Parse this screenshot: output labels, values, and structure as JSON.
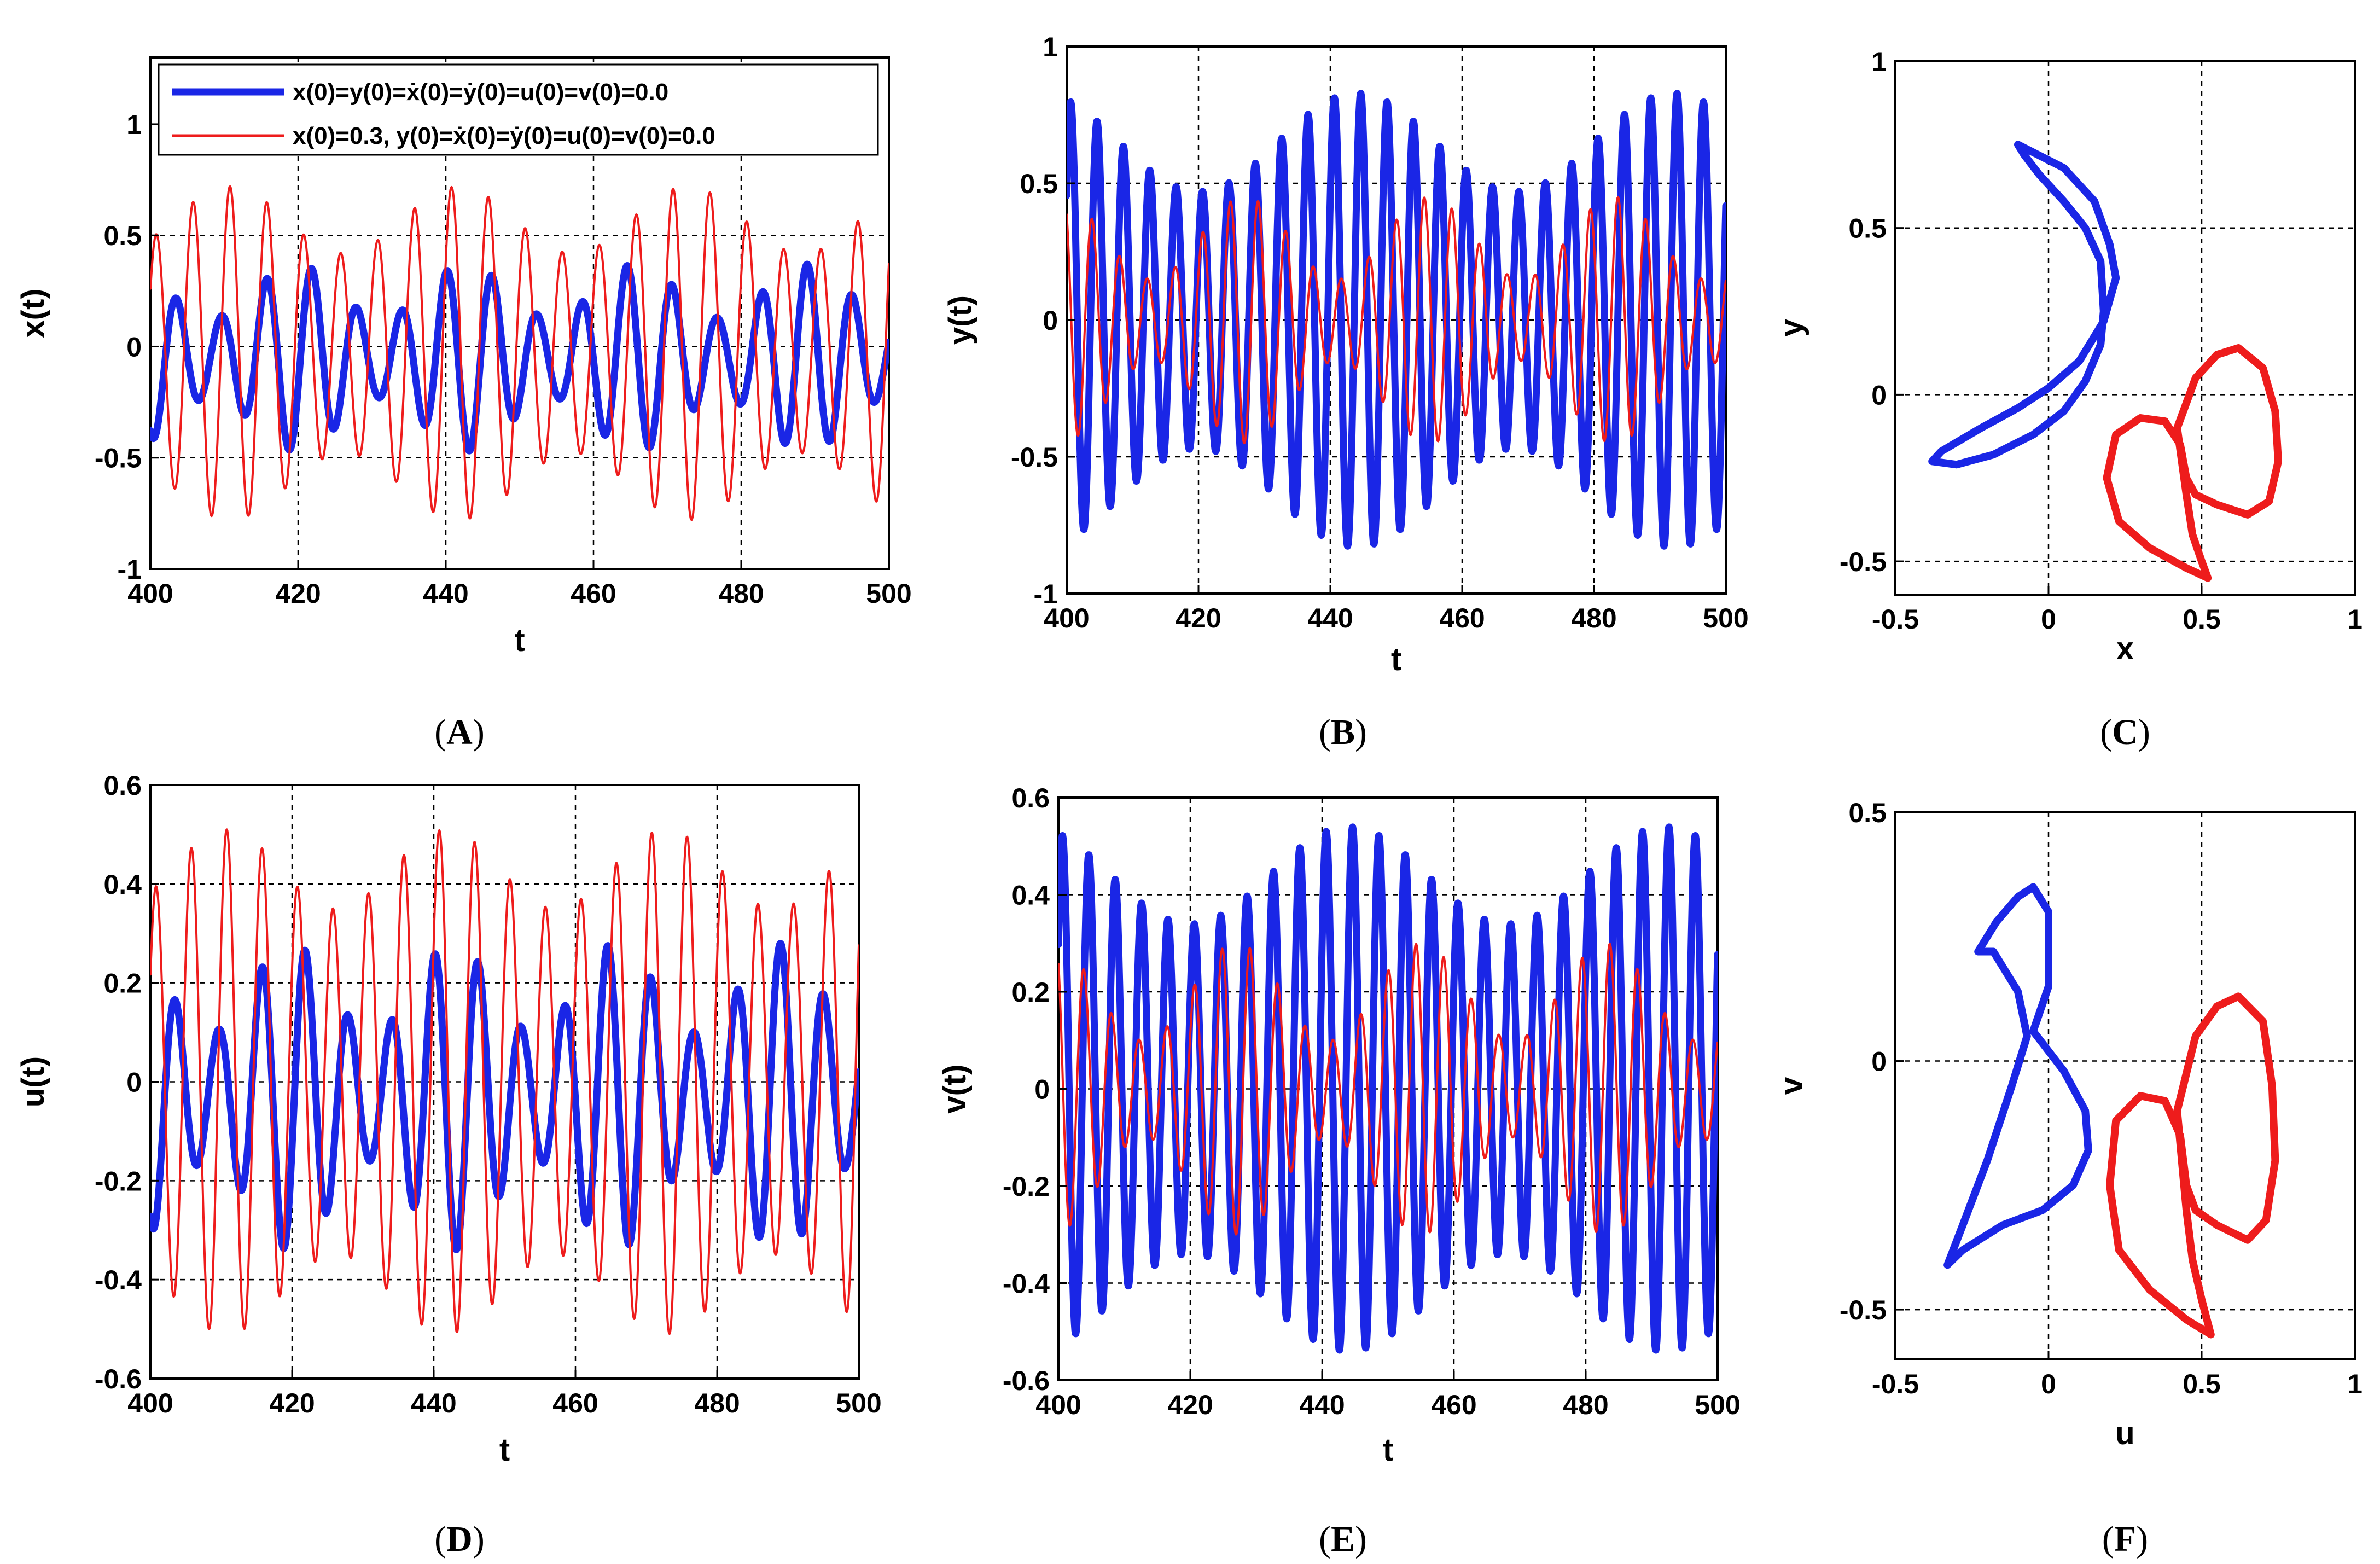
{
  "colors": {
    "series_a": "#1a26e6",
    "series_b": "#ee1c1c"
  },
  "legend": {
    "entries": [
      "x(0)=y(0)=ẋ(0)=ẏ(0)=u(0)=v(0)=0.0",
      "x(0)=0.3, y(0)=ẋ(0)=ẏ(0)=u(0)=v(0)=0.0"
    ]
  },
  "chart_data": [
    {
      "panel": "A",
      "caption": "(A)",
      "type": "line",
      "xlabel": "t",
      "ylabel": "x(t)",
      "xlim": [
        400,
        500
      ],
      "ylim": [
        -1,
        1.3
      ],
      "xticks": [
        400,
        420,
        440,
        460,
        480,
        500
      ],
      "yticks": [
        -1,
        -0.5,
        0,
        0.5,
        1
      ],
      "ytick_labels": [
        "-1",
        "-0.5",
        "0",
        "0.5",
        "1"
      ],
      "grid_x": [
        420,
        440,
        460,
        480
      ],
      "grid_y": [
        -0.5,
        0,
        0.5
      ],
      "legend_location": "top",
      "series": [
        {
          "name": "x(0)=y(0)=ẋ(0)=ẏ(0)=u(0)=v(0)=0.0",
          "color": "blue",
          "waveform": {
            "amplitude": 0.3,
            "offset": -0.05,
            "period": 6.1,
            "amplitude_modulation": 0.12,
            "mod_period": 23
          }
        },
        {
          "name": "x(0)=0.3, y(0)=ẋ(0)=ẏ(0)=u(0)=v(0)=0.0",
          "color": "red",
          "waveform": {
            "amplitude": 0.6,
            "offset": -0.03,
            "period": 5.0,
            "amplitude_modulation": 0.15,
            "mod_period": 31
          }
        }
      ]
    },
    {
      "panel": "B",
      "caption": "(B)",
      "type": "line",
      "xlabel": "t",
      "ylabel": "y(t)",
      "xlim": [
        400,
        500
      ],
      "ylim": [
        -1,
        1
      ],
      "xticks": [
        400,
        420,
        440,
        460,
        480,
        500
      ],
      "yticks": [
        -1,
        -0.5,
        0,
        0.5,
        1
      ],
      "ytick_labels": [
        "-1",
        "-0.5",
        "0",
        "0.5",
        "1"
      ],
      "grid_x": [
        420,
        440,
        460,
        480
      ],
      "grid_y": [
        -0.5,
        0,
        0.5
      ],
      "series": [
        {
          "name": "x(0)=y(0)=ẋ(0)=ẏ(0)=u(0)=v(0)=0.0",
          "color": "blue",
          "waveform": {
            "amplitude": 0.65,
            "offset": 0,
            "period": 4.0,
            "amplitude_modulation": 0.18,
            "mod_period": 48
          }
        },
        {
          "name": "x(0)=0.3, y(0)=ẋ(0)=ẏ(0)=u(0)=v(0)=0.0",
          "color": "red",
          "waveform": {
            "amplitude": 0.3,
            "offset": 0,
            "period": 4.2,
            "amplitude_modulation": 0.15,
            "mod_period": 28
          }
        }
      ]
    },
    {
      "panel": "C",
      "caption": "(C)",
      "type": "phase",
      "xlabel": "x",
      "ylabel": "y",
      "xlim": [
        -0.5,
        1
      ],
      "ylim": [
        -0.6,
        1
      ],
      "xticks": [
        -0.5,
        0,
        0.5,
        1
      ],
      "yticks": [
        -0.5,
        0,
        0.5,
        1
      ],
      "xtick_labels": [
        "-0.5",
        "0",
        "0.5",
        "1"
      ],
      "ytick_labels": [
        "-0.5",
        "0",
        "0.5",
        "1"
      ],
      "grid_x": [
        0,
        0.5
      ],
      "grid_y": [
        -0.5,
        0,
        0.5
      ],
      "series": [
        {
          "color": "blue",
          "points": [
            [
              -0.1,
              0.75
            ],
            [
              0.05,
              0.68
            ],
            [
              0.15,
              0.58
            ],
            [
              0.2,
              0.45
            ],
            [
              0.22,
              0.35
            ],
            [
              0.18,
              0.22
            ],
            [
              0.1,
              0.1
            ],
            [
              0.0,
              0.02
            ],
            [
              -0.1,
              -0.04
            ],
            [
              -0.22,
              -0.1
            ],
            [
              -0.35,
              -0.17
            ],
            [
              -0.38,
              -0.2
            ],
            [
              -0.3,
              -0.21
            ],
            [
              -0.18,
              -0.18
            ],
            [
              -0.05,
              -0.12
            ],
            [
              0.05,
              -0.05
            ],
            [
              0.12,
              0.04
            ],
            [
              0.17,
              0.15
            ],
            [
              0.18,
              0.25
            ],
            [
              0.17,
              0.4
            ],
            [
              0.12,
              0.5
            ],
            [
              0.05,
              0.58
            ],
            [
              -0.03,
              0.66
            ],
            [
              -0.08,
              0.72
            ],
            [
              -0.1,
              0.75
            ]
          ]
        },
        {
          "color": "red",
          "points": [
            [
              0.45,
              -0.3
            ],
            [
              0.42,
              -0.1
            ],
            [
              0.48,
              0.05
            ],
            [
              0.55,
              0.12
            ],
            [
              0.62,
              0.14
            ],
            [
              0.7,
              0.08
            ],
            [
              0.74,
              -0.05
            ],
            [
              0.75,
              -0.2
            ],
            [
              0.72,
              -0.32
            ],
            [
              0.65,
              -0.36
            ],
            [
              0.55,
              -0.33
            ],
            [
              0.48,
              -0.3
            ],
            [
              0.45,
              -0.25
            ],
            [
              0.43,
              -0.15
            ],
            [
              0.38,
              -0.08
            ],
            [
              0.3,
              -0.07
            ],
            [
              0.22,
              -0.12
            ],
            [
              0.19,
              -0.25
            ],
            [
              0.23,
              -0.38
            ],
            [
              0.33,
              -0.46
            ],
            [
              0.45,
              -0.52
            ],
            [
              0.52,
              -0.55
            ],
            [
              0.5,
              -0.5
            ],
            [
              0.47,
              -0.42
            ],
            [
              0.45,
              -0.3
            ]
          ]
        }
      ]
    },
    {
      "panel": "D",
      "caption": "(D)",
      "type": "line",
      "xlabel": "t",
      "ylabel": "u(t)",
      "xlim": [
        400,
        500
      ],
      "ylim": [
        -0.6,
        0.6
      ],
      "xticks": [
        400,
        420,
        440,
        460,
        480,
        500
      ],
      "yticks": [
        -0.6,
        -0.4,
        -0.2,
        0,
        0.2,
        0.4,
        0.6
      ],
      "ytick_labels": [
        "-0.6",
        "-0.4",
        "-0.2",
        "0",
        "0.2",
        "0.4",
        "0.6"
      ],
      "grid_x": [
        420,
        440,
        460,
        480
      ],
      "grid_y": [
        -0.4,
        -0.2,
        0,
        0.2,
        0.4
      ],
      "series": [
        {
          "name": "x(0)=y(0)=ẋ(0)=ẏ(0)=u(0)=v(0)=0.0",
          "color": "blue",
          "waveform": {
            "amplitude": 0.22,
            "offset": -0.03,
            "period": 6.1,
            "amplitude_modulation": 0.09,
            "mod_period": 23
          }
        },
        {
          "name": "x(0)=0.3, y(0)=ẋ(0)=ẏ(0)=u(0)=v(0)=0.0",
          "color": "red",
          "waveform": {
            "amplitude": 0.43,
            "offset": 0,
            "period": 5.0,
            "amplitude_modulation": 0.08,
            "mod_period": 31
          }
        }
      ]
    },
    {
      "panel": "E",
      "caption": "(E)",
      "type": "line",
      "xlabel": "t",
      "ylabel": "v(t)",
      "xlim": [
        400,
        500
      ],
      "ylim": [
        -0.6,
        0.6
      ],
      "xticks": [
        400,
        420,
        440,
        460,
        480,
        500
      ],
      "yticks": [
        -0.6,
        -0.4,
        -0.2,
        0,
        0.2,
        0.4,
        0.6
      ],
      "ytick_labels": [
        "-0.6",
        "-0.4",
        "-0.2",
        "0",
        "0.2",
        "0.4",
        "0.6"
      ],
      "grid_x": [
        420,
        440,
        460,
        480
      ],
      "grid_y": [
        -0.4,
        -0.2,
        0,
        0.2,
        0.4
      ],
      "series": [
        {
          "name": "x(0)=y(0)=ẋ(0)=ẏ(0)=u(0)=v(0)=0.0",
          "color": "blue",
          "waveform": {
            "amplitude": 0.44,
            "offset": 0,
            "period": 4.0,
            "amplitude_modulation": 0.1,
            "mod_period": 48
          }
        },
        {
          "name": "x(0)=0.3, y(0)=ẋ(0)=ẏ(0)=u(0)=v(0)=0.0",
          "color": "red",
          "waveform": {
            "amplitude": 0.2,
            "offset": 0,
            "period": 4.2,
            "amplitude_modulation": 0.1,
            "mod_period": 28
          }
        }
      ]
    },
    {
      "panel": "F",
      "caption": "(F)",
      "type": "phase",
      "xlabel": "u",
      "ylabel": "v",
      "xlim": [
        -0.5,
        1
      ],
      "ylim": [
        -0.6,
        0.5
      ],
      "xticks": [
        -0.5,
        0,
        0.5,
        1
      ],
      "yticks": [
        -0.5,
        0,
        0.5
      ],
      "xtick_labels": [
        "-0.5",
        "0",
        "0.5",
        "1"
      ],
      "ytick_labels": [
        "-0.5",
        "0",
        "0.5"
      ],
      "grid_x": [
        0,
        0.5
      ],
      "grid_y": [
        -0.5,
        0
      ],
      "series": [
        {
          "color": "blue",
          "points": [
            [
              -0.05,
              0.35
            ],
            [
              0.0,
              0.3
            ],
            [
              0.0,
              0.15
            ],
            [
              -0.05,
              0.06
            ],
            [
              0.05,
              -0.02
            ],
            [
              0.12,
              -0.1
            ],
            [
              0.13,
              -0.18
            ],
            [
              0.08,
              -0.25
            ],
            [
              -0.02,
              -0.3
            ],
            [
              -0.15,
              -0.33
            ],
            [
              -0.28,
              -0.38
            ],
            [
              -0.33,
              -0.41
            ],
            [
              -0.28,
              -0.33
            ],
            [
              -0.2,
              -0.2
            ],
            [
              -0.12,
              -0.05
            ],
            [
              -0.07,
              0.05
            ],
            [
              -0.1,
              0.14
            ],
            [
              -0.18,
              0.22
            ],
            [
              -0.23,
              0.22
            ],
            [
              -0.17,
              0.28
            ],
            [
              -0.1,
              0.33
            ],
            [
              -0.05,
              0.35
            ]
          ]
        },
        {
          "color": "red",
          "points": [
            [
              0.45,
              -0.3
            ],
            [
              0.42,
              -0.1
            ],
            [
              0.48,
              0.05
            ],
            [
              0.55,
              0.11
            ],
            [
              0.62,
              0.13
            ],
            [
              0.7,
              0.08
            ],
            [
              0.73,
              -0.05
            ],
            [
              0.74,
              -0.2
            ],
            [
              0.71,
              -0.32
            ],
            [
              0.65,
              -0.36
            ],
            [
              0.55,
              -0.33
            ],
            [
              0.48,
              -0.3
            ],
            [
              0.45,
              -0.25
            ],
            [
              0.43,
              -0.15
            ],
            [
              0.38,
              -0.08
            ],
            [
              0.3,
              -0.07
            ],
            [
              0.22,
              -0.12
            ],
            [
              0.2,
              -0.25
            ],
            [
              0.23,
              -0.38
            ],
            [
              0.33,
              -0.46
            ],
            [
              0.45,
              -0.52
            ],
            [
              0.53,
              -0.55
            ],
            [
              0.5,
              -0.48
            ],
            [
              0.47,
              -0.4
            ],
            [
              0.45,
              -0.3
            ]
          ]
        }
      ]
    }
  ]
}
